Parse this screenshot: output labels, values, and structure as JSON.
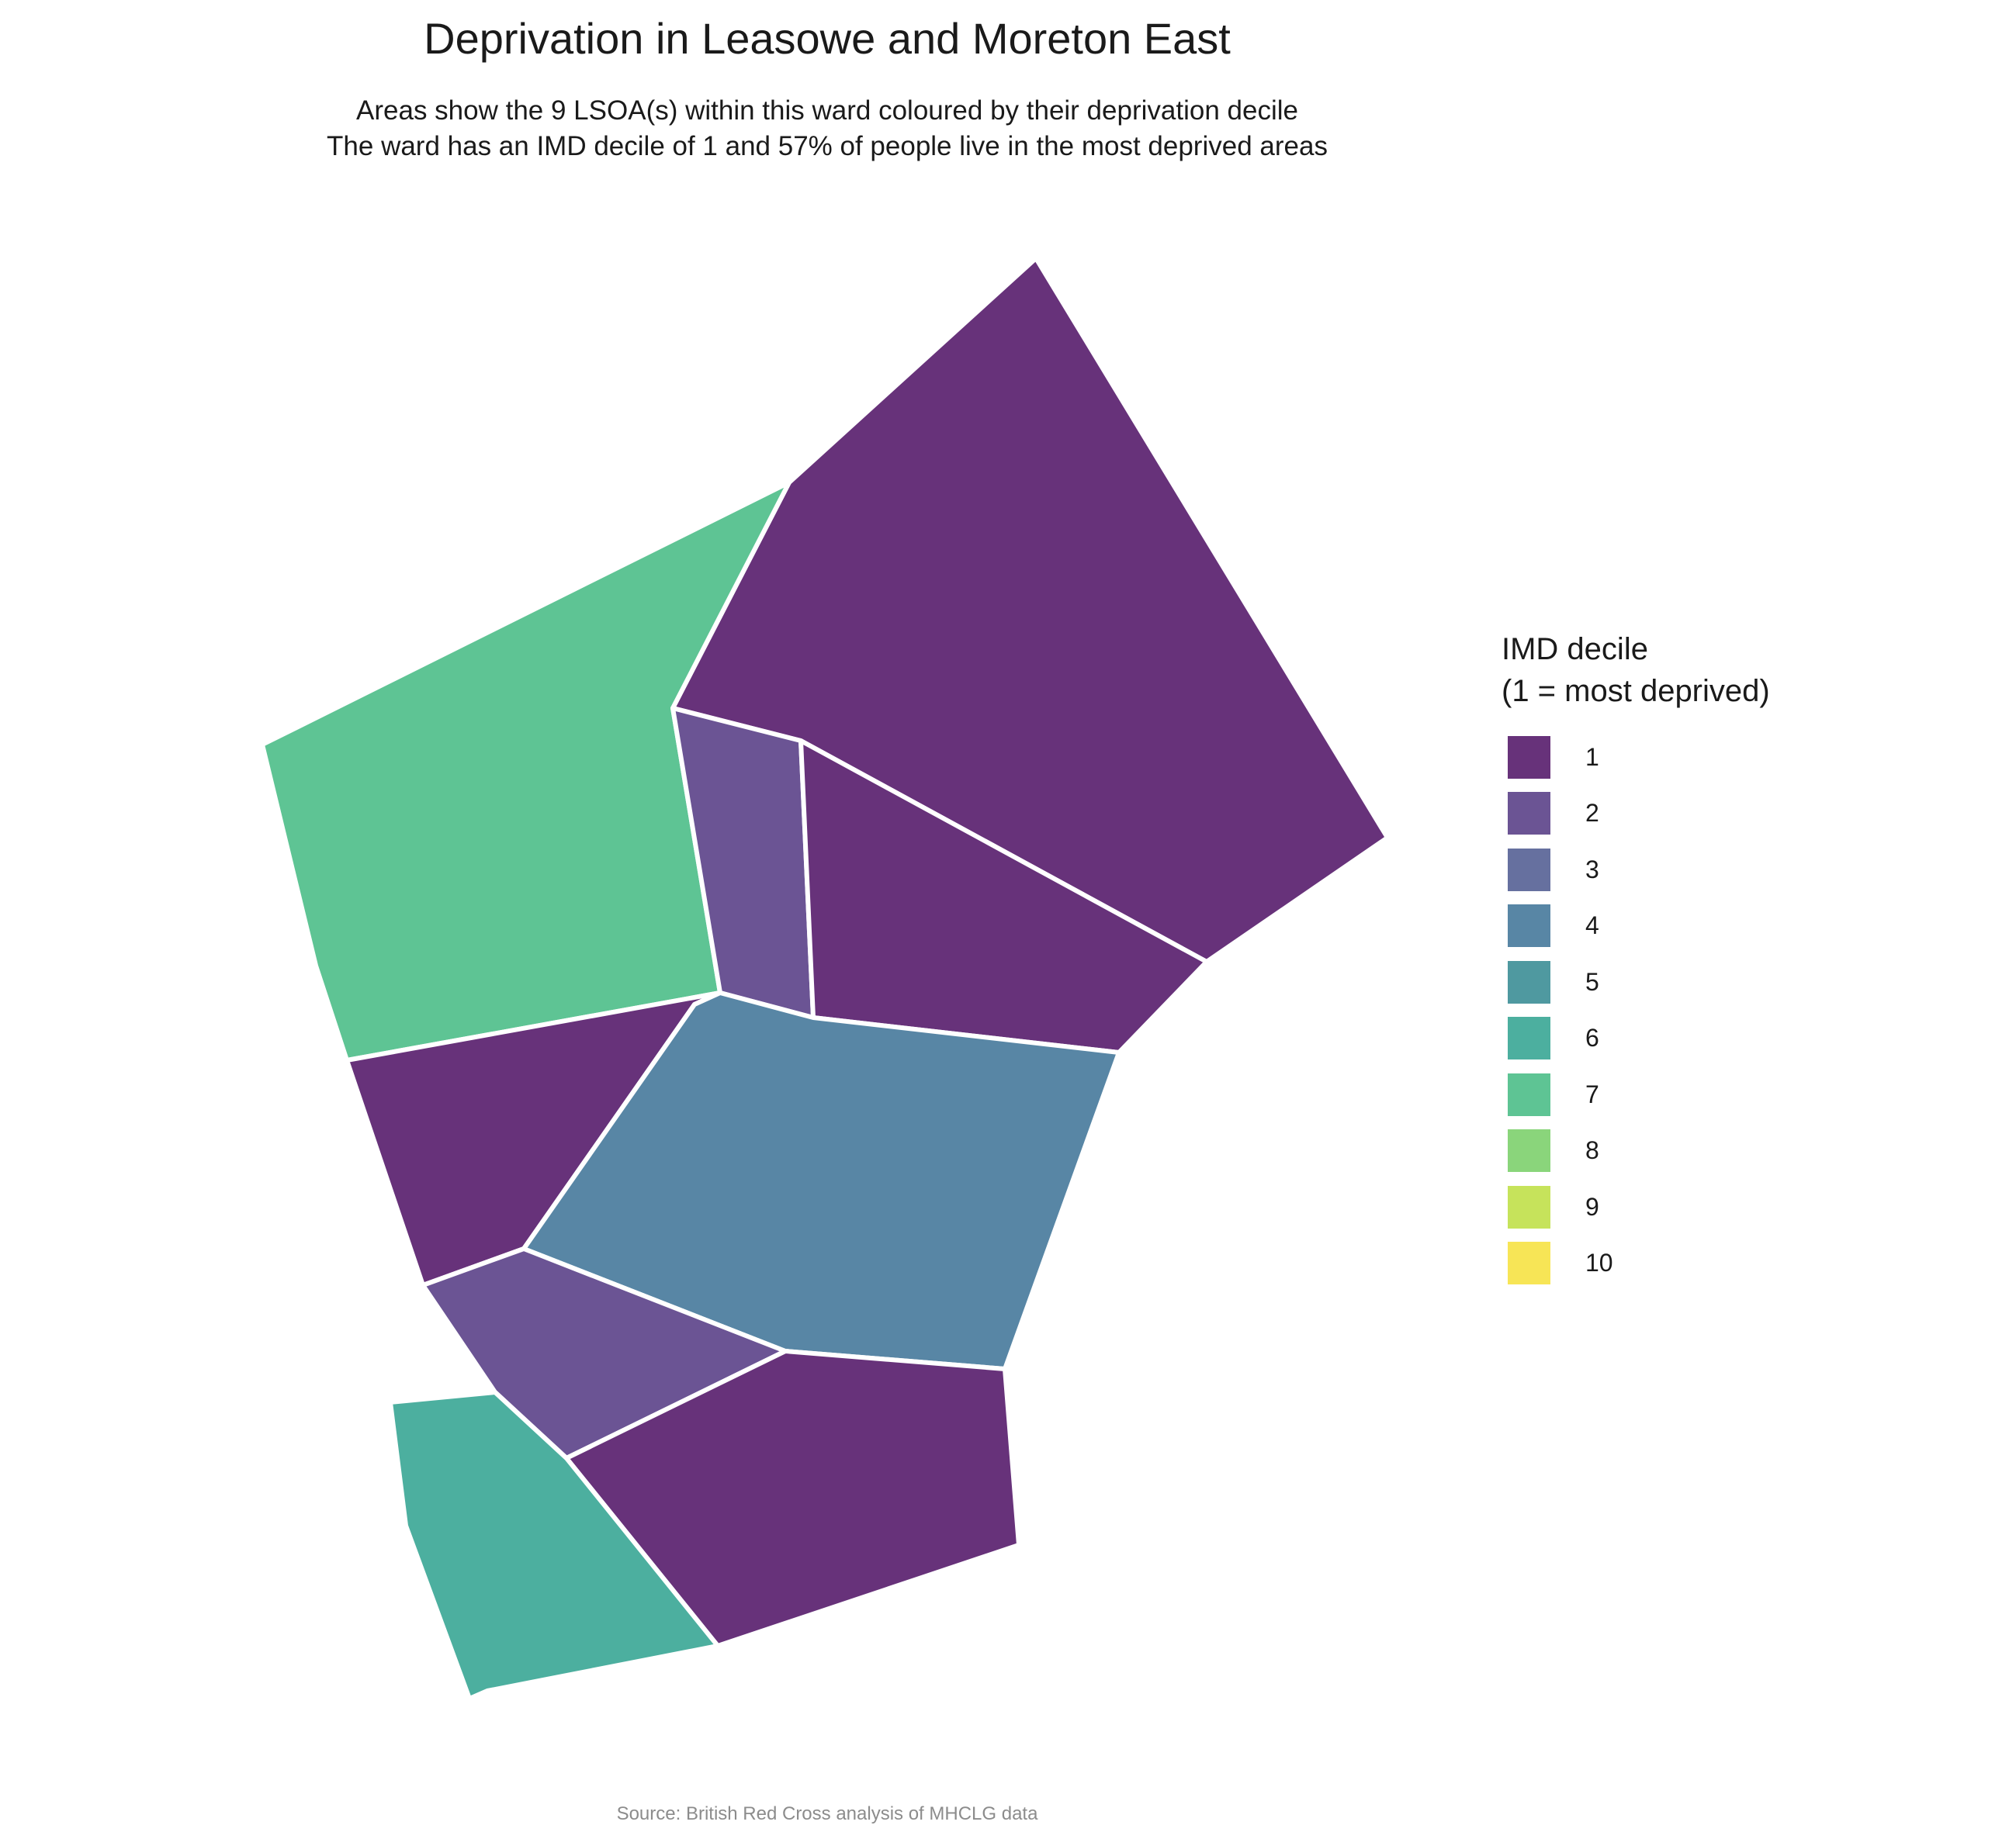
{
  "title": "Deprivation in Leasowe and Moreton East",
  "subtitle_lines": [
    "Areas show the 9 LSOA(s) within this ward coloured by their deprivation decile",
    "The ward has an IMD decile of 1 and 57% of people live in the most deprived areas"
  ],
  "caption": "Source: British Red Cross analysis of MHCLG data",
  "legend": {
    "title": "IMD decile\n(1 = most deprived)",
    "items": [
      {
        "label": "1",
        "color": "#67327a"
      },
      {
        "label": "2",
        "color": "#6b5494"
      },
      {
        "label": "3",
        "color": "#66709f"
      },
      {
        "label": "4",
        "color": "#5886a5"
      },
      {
        "label": "5",
        "color": "#4f99a0"
      },
      {
        "label": "6",
        "color": "#4caf9f"
      },
      {
        "label": "7",
        "color": "#5ec494"
      },
      {
        "label": "8",
        "color": "#8ad57b"
      },
      {
        "label": "9",
        "color": "#c6e35b"
      },
      {
        "label": "10",
        "color": "#f7e556"
      }
    ]
  },
  "map": {
    "areas": [
      {
        "name": "north-east",
        "decile": 1
      },
      {
        "name": "north-west",
        "decile": 7
      },
      {
        "name": "central-strip",
        "decile": 2
      },
      {
        "name": "central-east",
        "decile": 1
      },
      {
        "name": "west-middle",
        "decile": 1
      },
      {
        "name": "central-south",
        "decile": 4
      },
      {
        "name": "south-west-strip",
        "decile": 2
      },
      {
        "name": "south-east",
        "decile": 1
      },
      {
        "name": "south-west",
        "decile": 6
      }
    ]
  }
}
